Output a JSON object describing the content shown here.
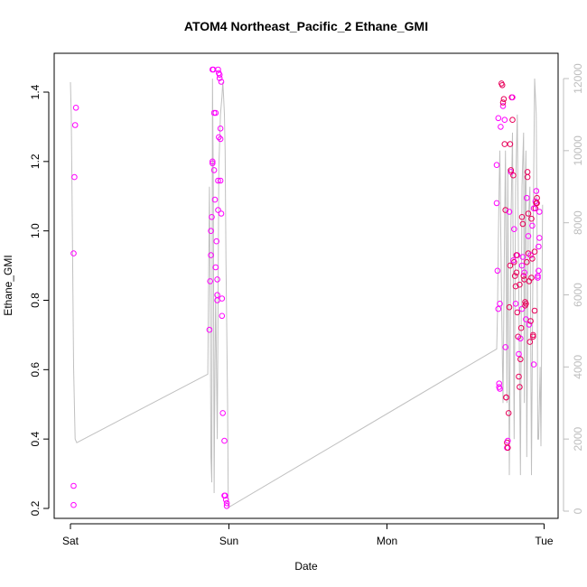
{
  "chart_data": {
    "type": "scatter",
    "title": "ATOM4 Northeast_Pacific_2 Ethane_GMI",
    "xlabel": "Date",
    "ylabel": "Ethane_GMI",
    "x_ticks": [
      "Sat",
      "Sun",
      "Mon",
      "Tue"
    ],
    "x_range_days": [
      0,
      3
    ],
    "ylim": [
      0.2,
      1.47
    ],
    "y_ticks": [
      0.2,
      0.4,
      0.6,
      0.8,
      1.0,
      1.2,
      1.4
    ],
    "y_tick_labels": [
      "0.2",
      "0.4",
      "0.6",
      "0.8",
      "1.0",
      "1.2",
      "1.4"
    ],
    "y2lim": [
      0,
      12000
    ],
    "y2_ticks": [
      0,
      2000,
      4000,
      6000,
      8000,
      10000,
      12000
    ],
    "y2_tick_labels": [
      "0",
      "2000",
      "4000",
      "6000",
      "8000",
      "10000",
      "12000"
    ],
    "grid": false,
    "colors": {
      "points_low": "#ff00ff",
      "points_high": "#e8005a",
      "altitude_line": "#c0c0c0",
      "right_axis": "#bdbdbd"
    },
    "series": [
      {
        "type": "scatter",
        "points": [
          [
            0.02,
            0.21
          ],
          [
            0.02,
            0.265
          ],
          [
            0.02,
            0.935
          ],
          [
            0.025,
            1.155
          ],
          [
            0.03,
            1.305
          ],
          [
            0.035,
            1.355
          ],
          [
            0.88,
            0.715
          ],
          [
            0.885,
            0.855
          ],
          [
            0.89,
            0.93
          ],
          [
            0.89,
            1.0
          ],
          [
            0.895,
            1.04
          ],
          [
            0.9,
            1.2
          ],
          [
            0.9,
            1.195
          ],
          [
            0.9,
            1.465
          ],
          [
            0.905,
            1.465
          ],
          [
            0.91,
            1.34
          ],
          [
            0.91,
            1.175
          ],
          [
            0.915,
            1.09
          ],
          [
            0.92,
            0.895
          ],
          [
            0.92,
            1.34
          ],
          [
            0.925,
            0.97
          ],
          [
            0.93,
            0.8
          ],
          [
            0.93,
            0.815
          ],
          [
            0.93,
            0.86
          ],
          [
            0.935,
            1.465
          ],
          [
            0.935,
            1.06
          ],
          [
            0.935,
            1.145
          ],
          [
            0.94,
            1.455
          ],
          [
            0.94,
            1.27
          ],
          [
            0.945,
            1.45
          ],
          [
            0.945,
            1.44
          ],
          [
            0.95,
            1.265
          ],
          [
            0.95,
            1.295
          ],
          [
            0.95,
            1.145
          ],
          [
            0.955,
            1.05
          ],
          [
            0.955,
            1.43
          ],
          [
            0.96,
            0.805
          ],
          [
            0.96,
            0.755
          ],
          [
            0.965,
            0.475
          ],
          [
            0.975,
            0.395
          ],
          [
            0.975,
            0.237
          ],
          [
            0.98,
            0.237
          ],
          [
            0.985,
            0.225
          ],
          [
            0.99,
            0.215
          ],
          [
            0.99,
            0.207
          ],
          [
            2.7,
            1.19
          ],
          [
            2.7,
            1.08
          ],
          [
            2.705,
            0.885
          ],
          [
            2.71,
            0.775
          ],
          [
            2.71,
            1.325
          ],
          [
            2.715,
            0.56
          ],
          [
            2.715,
            0.55
          ],
          [
            2.72,
            0.545
          ],
          [
            2.72,
            0.79
          ],
          [
            2.725,
            1.3
          ],
          [
            2.73,
            1.425
          ],
          [
            2.735,
            1.42
          ],
          [
            2.74,
            1.36
          ],
          [
            2.74,
            1.37
          ],
          [
            2.745,
            1.38
          ],
          [
            2.75,
            1.32
          ],
          [
            2.75,
            1.25
          ],
          [
            2.755,
            1.06
          ],
          [
            2.755,
            0.665
          ],
          [
            2.76,
            0.52
          ],
          [
            2.76,
            0.52
          ],
          [
            2.765,
            0.375
          ],
          [
            2.765,
            0.39
          ],
          [
            2.77,
            0.375
          ],
          [
            2.77,
            0.395
          ],
          [
            2.775,
            0.475
          ],
          [
            2.78,
            0.78
          ],
          [
            2.78,
            1.055
          ],
          [
            2.785,
            0.9
          ],
          [
            2.785,
            1.25
          ],
          [
            2.79,
            1.17
          ],
          [
            2.79,
            1.175
          ],
          [
            2.795,
            1.385
          ],
          [
            2.8,
            1.385
          ],
          [
            2.8,
            1.32
          ],
          [
            2.805,
            1.16
          ],
          [
            2.81,
            1.005
          ],
          [
            2.81,
            0.91
          ],
          [
            2.815,
            0.87
          ],
          [
            2.82,
            0.79
          ],
          [
            2.82,
            0.84
          ],
          [
            2.825,
            0.88
          ],
          [
            2.83,
            0.93
          ],
          [
            2.83,
            0.765
          ],
          [
            2.835,
            0.695
          ],
          [
            2.84,
            0.645
          ],
          [
            2.84,
            0.58
          ],
          [
            2.845,
            0.55
          ],
          [
            2.85,
            0.69
          ],
          [
            2.85,
            0.63
          ],
          [
            2.855,
            0.72
          ],
          [
            2.86,
            0.775
          ],
          [
            2.86,
            1.04
          ],
          [
            2.865,
            1.02
          ],
          [
            2.865,
            0.925
          ],
          [
            2.87,
            0.87
          ],
          [
            2.875,
            0.86
          ],
          [
            2.875,
            0.88
          ],
          [
            2.88,
            0.795
          ],
          [
            2.88,
            0.785
          ],
          [
            2.885,
            0.745
          ],
          [
            2.885,
            0.79
          ],
          [
            2.89,
            0.91
          ],
          [
            2.89,
            1.095
          ],
          [
            2.895,
            1.17
          ],
          [
            2.895,
            1.155
          ],
          [
            2.9,
            0.985
          ],
          [
            2.9,
            0.935
          ],
          [
            2.905,
            0.855
          ],
          [
            2.905,
            0.73
          ],
          [
            2.91,
            0.68
          ],
          [
            2.915,
            0.74
          ],
          [
            2.915,
            0.93
          ],
          [
            2.92,
            0.865
          ],
          [
            2.92,
            1.035
          ],
          [
            2.925,
            1.015
          ],
          [
            2.93,
            0.7
          ],
          [
            2.93,
            0.695
          ],
          [
            2.935,
            0.615
          ],
          [
            2.94,
            0.77
          ],
          [
            2.94,
            0.94
          ],
          [
            2.945,
            1.085
          ],
          [
            2.945,
            1.065
          ],
          [
            2.95,
            1.08
          ],
          [
            2.95,
            1.115
          ],
          [
            2.955,
            1.095
          ],
          [
            2.955,
            1.08
          ],
          [
            2.96,
            0.87
          ],
          [
            2.96,
            0.865
          ],
          [
            2.965,
            0.955
          ],
          [
            2.965,
            0.885
          ],
          [
            2.97,
            0.98
          ],
          [
            2.97,
            1.055
          ],
          [
            2.935,
            1.065
          ],
          [
            2.925,
            0.92
          ],
          [
            2.9,
            1.05
          ],
          [
            2.86,
            0.9
          ],
          [
            2.845,
            0.845
          ],
          [
            2.825,
            0.93
          ],
          [
            2.805,
            0.915
          ]
        ]
      },
      {
        "type": "line",
        "axis": "right",
        "points": [
          [
            0.0,
            11900
          ],
          [
            0.005,
            11000
          ],
          [
            0.01,
            9000
          ],
          [
            0.02,
            4000
          ],
          [
            0.03,
            2000
          ],
          [
            0.04,
            1900
          ],
          [
            0.87,
            3800
          ],
          [
            0.88,
            9000
          ],
          [
            0.885,
            6000
          ],
          [
            0.89,
            1500
          ],
          [
            0.895,
            800
          ],
          [
            0.9,
            12000
          ],
          [
            0.905,
            9000
          ],
          [
            0.91,
            500
          ],
          [
            0.915,
            4000
          ],
          [
            0.92,
            6000
          ],
          [
            0.93,
            2000
          ],
          [
            0.94,
            9500
          ],
          [
            0.95,
            11000
          ],
          [
            0.96,
            11500
          ],
          [
            0.965,
            11900
          ],
          [
            0.97,
            11500
          ],
          [
            0.975,
            11000
          ],
          [
            0.98,
            10000
          ],
          [
            0.985,
            7000
          ],
          [
            0.99,
            5000
          ],
          [
            0.995,
            3000
          ],
          [
            1.0,
            100
          ],
          [
            2.7,
            4500
          ],
          [
            2.705,
            5500
          ],
          [
            2.71,
            7500
          ],
          [
            2.715,
            9000
          ],
          [
            2.72,
            10000
          ],
          [
            2.73,
            6000
          ],
          [
            2.74,
            3000
          ],
          [
            2.75,
            8000
          ],
          [
            2.755,
            10000
          ],
          [
            2.76,
            7000
          ],
          [
            2.765,
            3000
          ],
          [
            2.77,
            9500
          ],
          [
            2.775,
            5000
          ],
          [
            2.78,
            1000
          ],
          [
            2.79,
            8000
          ],
          [
            2.8,
            10500
          ],
          [
            2.81,
            2000
          ],
          [
            2.82,
            9000
          ],
          [
            2.83,
            11000
          ],
          [
            2.84,
            6000
          ],
          [
            2.85,
            1000
          ],
          [
            2.86,
            9000
          ],
          [
            2.87,
            10500
          ],
          [
            2.875,
            3000
          ],
          [
            2.88,
            9000
          ],
          [
            2.885,
            10000
          ],
          [
            2.89,
            1500
          ],
          [
            2.9,
            8000
          ],
          [
            2.91,
            9000
          ],
          [
            2.92,
            1000
          ],
          [
            2.93,
            7500
          ],
          [
            2.94,
            12000
          ],
          [
            2.95,
            11000
          ],
          [
            2.955,
            8000
          ],
          [
            2.96,
            2000
          ],
          [
            2.965,
            2000
          ],
          [
            2.97,
            3000
          ],
          [
            2.975,
            4000
          ],
          [
            2.98,
            1800
          ],
          [
            2.99,
            8500
          ]
        ]
      }
    ]
  }
}
